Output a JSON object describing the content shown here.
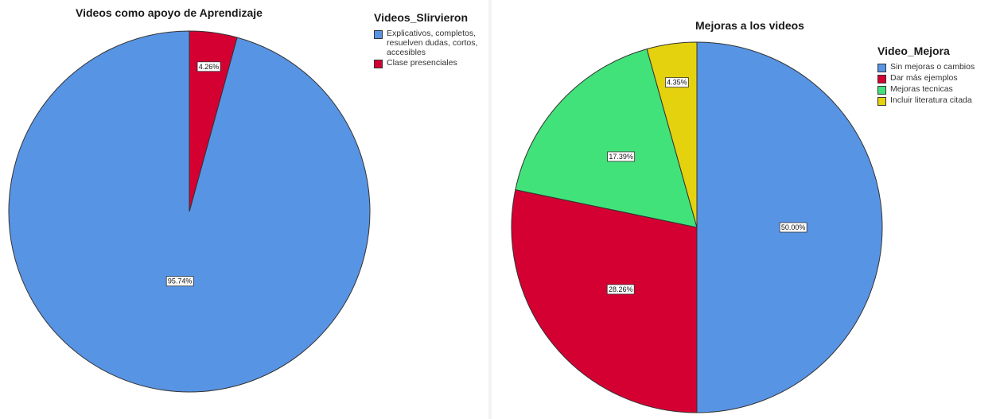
{
  "chart_data": [
    {
      "type": "pie",
      "title": "Videos como apoyo de Aprendizaje",
      "legend_title": "Videos_Slirvieron",
      "legend_position": "top-right",
      "start_angle": "12 o'clock, counterclockwise",
      "slices": [
        {
          "label": "Explicativos, completos, resuelven dudas, cortos, accesibles",
          "value": 95.74,
          "pct_label": "95.74%",
          "color": "#5894e4"
        },
        {
          "label": "Clase presenciales",
          "value": 4.26,
          "pct_label": "4.26%",
          "color": "#d50032"
        }
      ]
    },
    {
      "type": "pie",
      "title": "Mejoras a los videos",
      "legend_title": "Video_Mejora",
      "legend_position": "top-right",
      "start_angle": "12 o'clock, clockwise",
      "slices": [
        {
          "label": "Sin mejoras o cambios",
          "value": 50.0,
          "pct_label": "50.00%",
          "color": "#5894e4"
        },
        {
          "label": "Dar más ejemplos",
          "value": 28.26,
          "pct_label": "28.26%",
          "color": "#d50032"
        },
        {
          "label": "Mejoras tecnicas",
          "value": 17.39,
          "pct_label": "17.39%",
          "color": "#42e27a"
        },
        {
          "label": "Incluir literatura citada",
          "value": 4.35,
          "pct_label": "4.35%",
          "color": "#e5d20e"
        }
      ]
    }
  ]
}
